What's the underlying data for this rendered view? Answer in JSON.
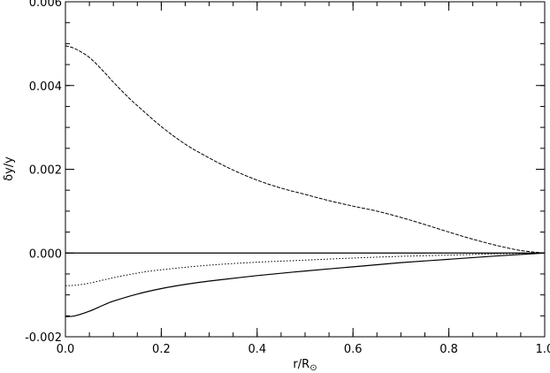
{
  "chart_data": {
    "type": "line",
    "title": "",
    "xlabel": "r/R",
    "xlabel_subscript": "⊙",
    "ylabel": "δy/y",
    "xlim": [
      0.0,
      1.0
    ],
    "ylim": [
      -0.002,
      0.006
    ],
    "x_ticks": [
      "0.0",
      "0.2",
      "0.4",
      "0.6",
      "0.8",
      "1.0"
    ],
    "y_ticks": [
      "-0.002",
      "0.000",
      "0.002",
      "0.004",
      "0.006"
    ],
    "grid": false,
    "legend": "none",
    "series": [
      {
        "style": "dashed",
        "x": [
          0.0,
          0.02,
          0.05,
          0.08,
          0.1,
          0.13,
          0.15,
          0.2,
          0.25,
          0.3,
          0.35,
          0.4,
          0.45,
          0.5,
          0.55,
          0.6,
          0.65,
          0.7,
          0.75,
          0.8,
          0.85,
          0.9,
          0.95,
          1.0
        ],
        "y": [
          0.00495,
          0.00488,
          0.00467,
          0.00433,
          0.00408,
          0.00373,
          0.00352,
          0.00302,
          0.0026,
          0.00227,
          0.00198,
          0.00174,
          0.00155,
          0.0014,
          0.00125,
          0.00112,
          0.001,
          0.00085,
          0.00068,
          0.0005,
          0.00033,
          0.00018,
          6e-05,
          0.0
        ]
      },
      {
        "style": "solid",
        "x": [
          0.0,
          1.0
        ],
        "y": [
          0.0,
          0.0
        ]
      },
      {
        "style": "dotted",
        "x": [
          0.0,
          0.02,
          0.05,
          0.1,
          0.15,
          0.2,
          0.3,
          0.4,
          0.5,
          0.6,
          0.7,
          0.8,
          0.9,
          1.0
        ],
        "y": [
          -0.00078,
          -0.00077,
          -0.00072,
          -0.00059,
          -0.00048,
          -0.0004,
          -0.00029,
          -0.00022,
          -0.00017,
          -0.00012,
          -8e-05,
          -5e-05,
          -2e-05,
          0.0
        ]
      },
      {
        "style": "solid",
        "x": [
          0.0,
          0.02,
          0.05,
          0.08,
          0.1,
          0.15,
          0.2,
          0.25,
          0.3,
          0.4,
          0.5,
          0.6,
          0.7,
          0.8,
          0.9,
          1.0
        ],
        "y": [
          -0.00152,
          -0.0015,
          -0.00139,
          -0.00124,
          -0.00115,
          -0.00098,
          -0.00085,
          -0.00075,
          -0.00067,
          -0.00054,
          -0.00043,
          -0.00033,
          -0.00023,
          -0.00015,
          -7e-05,
          0.0
        ]
      }
    ]
  }
}
